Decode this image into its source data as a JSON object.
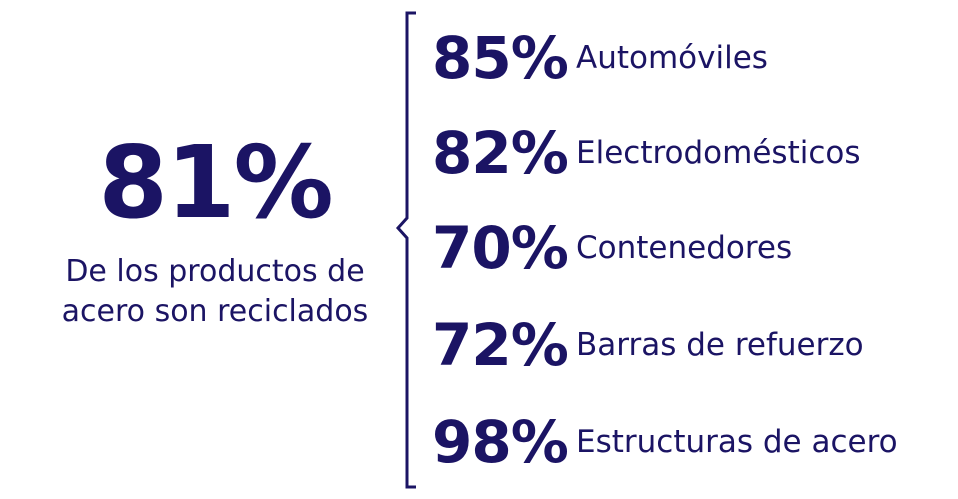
{
  "colors": {
    "text": "#1b1464",
    "background": "#ffffff"
  },
  "summary": {
    "value": "81%",
    "line1": "De los productos de",
    "line2": "acero son reciclados"
  },
  "stats": [
    {
      "value": "85%",
      "label": "Automóviles"
    },
    {
      "value": "82%",
      "label": "Electrodomésticos"
    },
    {
      "value": "70%",
      "label": "Contenedores"
    },
    {
      "value": "72%",
      "label": "Barras de refuerzo"
    },
    {
      "value": "98%",
      "label": "Estructuras de acero"
    }
  ]
}
